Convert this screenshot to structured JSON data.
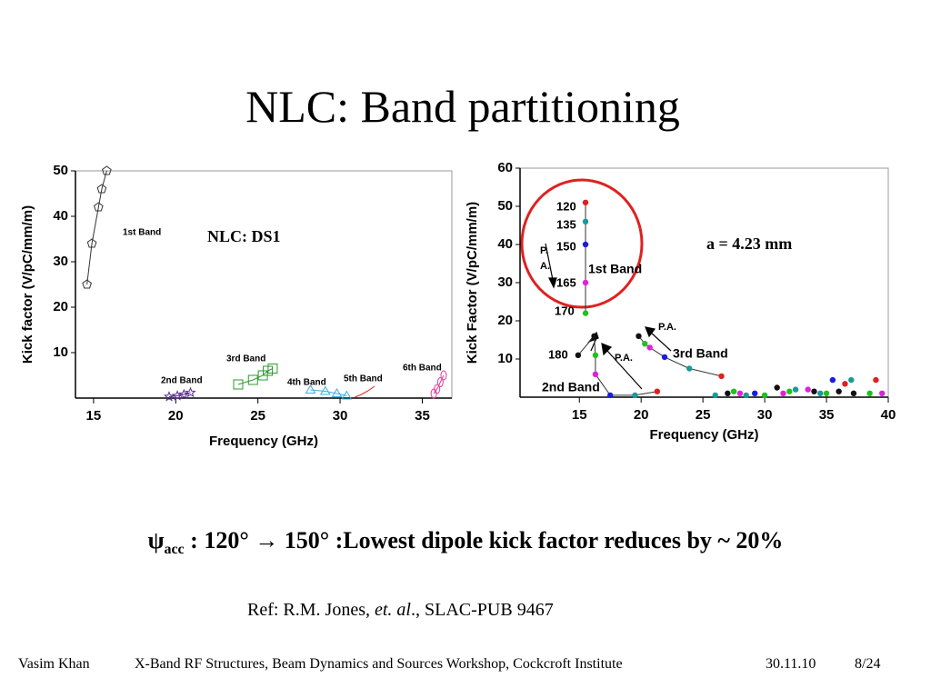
{
  "title": "NLC: Band partitioning",
  "chart_data": [
    {
      "type": "scatter",
      "xlabel": "Frequency (GHz)",
      "ylabel": "Kick factor (V/pC/mm/m)",
      "xlim": [
        13.9,
        36.8
      ],
      "ylim": [
        0,
        50
      ],
      "xticks": [
        15,
        20,
        25,
        30,
        35
      ],
      "yticks": [
        10,
        20,
        30,
        40,
        50
      ],
      "annotations": [
        "1st Band",
        "2nd Band",
        "3rd Band",
        "4th Band",
        "5th Band",
        "6th Band",
        "NLC: DS1"
      ],
      "series": [
        {
          "color": "#333333",
          "marker": "pentagon",
          "line": true,
          "x": [
            14.6,
            14.9,
            15.3,
            15.5,
            15.8
          ],
          "values": [
            25,
            34,
            42,
            46,
            50
          ]
        },
        {
          "color": "#5a2d91",
          "marker": "star",
          "line": true,
          "x": [
            19.6,
            20.1,
            20.5,
            20.9
          ],
          "values": [
            0.3,
            0.5,
            0.8,
            1.2
          ]
        },
        {
          "color": "#2e9a2e",
          "marker": "square",
          "line": true,
          "x": [
            23.8,
            24.7,
            25.3,
            25.6,
            25.9
          ],
          "values": [
            3,
            4,
            5,
            6,
            6.5
          ]
        },
        {
          "color": "#3ab0d8",
          "marker": "triangle",
          "line": true,
          "x": [
            28.2,
            29.1,
            29.8,
            30.4
          ],
          "values": [
            1.8,
            1.5,
            1,
            0.5
          ]
        },
        {
          "color": "#e02020",
          "marker": "none",
          "line": true,
          "x": [
            30.9,
            31.3,
            31.7,
            32.1
          ],
          "values": [
            0.2,
            0.8,
            1.6,
            2.6
          ]
        },
        {
          "color": "#e0409a",
          "marker": "ellipse",
          "line": true,
          "x": [
            35.7,
            35.9,
            36.1,
            36.3
          ],
          "values": [
            1,
            2,
            3.5,
            5
          ]
        }
      ]
    },
    {
      "type": "scatter",
      "xlabel": "Frequency (GHz)",
      "ylabel": "Kick Factor (V/pC/mm/m)",
      "xlim": [
        10.2,
        40
      ],
      "ylim": [
        0,
        60
      ],
      "xticks": [
        15,
        20,
        25,
        30,
        35,
        40
      ],
      "yticks": [
        10,
        20,
        30,
        40,
        50,
        60
      ],
      "annotations": [
        "120",
        "135",
        "150",
        "P.",
        "A.",
        "1st Band",
        "165",
        "170",
        "180",
        "2nd Band",
        "P.A.",
        "P.A.",
        "3rd Band",
        "a = 4.23 mm"
      ],
      "series": [
        {
          "line": true,
          "x": [
            15.5,
            15.5,
            15.5,
            15.5,
            15.5
          ],
          "values": [
            51,
            46,
            40,
            30,
            22
          ],
          "colors": [
            "#e02020",
            "#1a9a9a",
            "#1a1ae0",
            "#e020e0",
            "#20c020"
          ]
        },
        {
          "line": true,
          "x": [
            14.9,
            16.2,
            16.3,
            16.3,
            17.5,
            19.5,
            21.3
          ],
          "values": [
            11,
            16,
            11,
            6,
            0.5,
            0.5,
            1.5
          ],
          "colors": [
            "#111111",
            "#111111",
            "#20c020",
            "#e020e0",
            "#1a1ae0",
            "#1a9a9a",
            "#e02020"
          ]
        },
        {
          "line": true,
          "x": [
            19.8,
            20.3,
            20.7,
            21.9,
            23.9,
            26.5
          ],
          "values": [
            16,
            14,
            13,
            10.5,
            7.5,
            5.5
          ],
          "colors": [
            "#111111",
            "#20c020",
            "#e020e0",
            "#1a1ae0",
            "#1a9a9a",
            "#e02020"
          ]
        },
        {
          "line": false,
          "x": [
            26,
            27,
            27.5,
            28,
            28.5,
            29.2,
            30,
            31,
            31.5,
            32,
            32.5,
            33.5,
            34,
            34.5,
            35,
            35.5,
            36,
            36.5,
            37,
            37.2,
            38.5,
            39,
            39.5
          ],
          "values": [
            0.5,
            1,
            1.5,
            1,
            0.5,
            1,
            0.5,
            2.5,
            1,
            1.5,
            2,
            2,
            1.5,
            1,
            1,
            4.5,
            1.5,
            3.5,
            4.5,
            1,
            1,
            4.5,
            1
          ],
          "colors": [
            "#1a9a9a",
            "#111111",
            "#20c020",
            "#e020e0",
            "#1a9a9a",
            "#1a1ae0",
            "#20c020",
            "#111111",
            "#e020e0",
            "#20c020",
            "#1a9a9a",
            "#e020e0",
            "#111111",
            "#1a9a9a",
            "#20c020",
            "#1a1ae0",
            "#111111",
            "#e02020",
            "#1a9a9a",
            "#111111",
            "#20c020",
            "#e02020",
            "#e020e0"
          ]
        }
      ]
    }
  ],
  "caption": {
    "symbol": "ψ",
    "sub": "acc",
    "text": " : 120°  →  150°  :Lowest dipole kick factor reduces by ~ 20%"
  },
  "ref": {
    "pre": "Ref: R.M. Jones, ",
    "italic": "et. al",
    "post": "., SLAC-PUB 9467"
  },
  "footer": {
    "author": "Vasim Khan",
    "event": "X-Band RF Structures, Beam Dynamics and Sources Workshop, Cockcroft Institute",
    "date": "30.11.10",
    "page": "8/24"
  }
}
